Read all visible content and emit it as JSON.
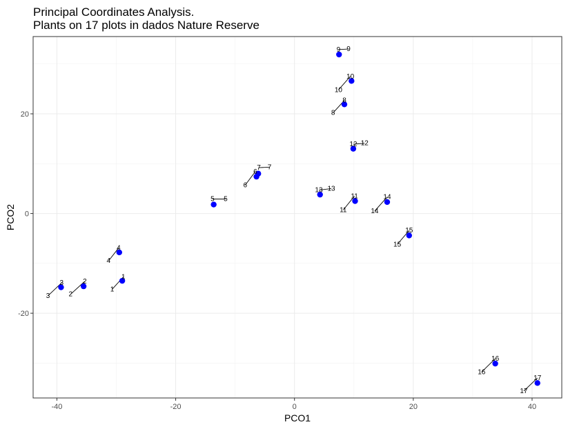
{
  "chart_data": {
    "type": "scatter",
    "title": "Principal Coordinates Analysis.",
    "subtitle": "Plants on 17 plots in dados Nature Reserve",
    "xlabel": "PCO1",
    "ylabel": "PCO2",
    "xlim": [
      -44,
      45
    ],
    "ylim": [
      -37,
      35.5
    ],
    "xticks": [
      -40,
      -20,
      0,
      20,
      40
    ],
    "yticks": [
      -20,
      0,
      20
    ],
    "grid": true,
    "point_color": "#0000ff",
    "points": [
      {
        "label": "1",
        "x": -29.0,
        "y": -13.5
      },
      {
        "label": "2",
        "x": -35.5,
        "y": -14.6
      },
      {
        "label": "3",
        "x": -39.3,
        "y": -14.8
      },
      {
        "label": "4",
        "x": -29.5,
        "y": -7.8
      },
      {
        "label": "5",
        "x": -13.6,
        "y": 1.8
      },
      {
        "label": "6",
        "x": -6.4,
        "y": 7.4
      },
      {
        "label": "7",
        "x": -6.1,
        "y": 8.0
      },
      {
        "label": "8",
        "x": 8.4,
        "y": 21.9
      },
      {
        "label": "9",
        "x": 7.5,
        "y": 31.9
      },
      {
        "label": "10",
        "x": 9.6,
        "y": 26.6
      },
      {
        "label": "11",
        "x": 10.2,
        "y": 2.5
      },
      {
        "label": "12",
        "x": 9.9,
        "y": 13.0
      },
      {
        "label": "13",
        "x": 4.3,
        "y": 3.8
      },
      {
        "label": "14",
        "x": 15.6,
        "y": 2.3
      },
      {
        "label": "15",
        "x": 19.3,
        "y": -4.4
      },
      {
        "label": "16",
        "x": 33.8,
        "y": -30.1
      },
      {
        "label": "17",
        "x": 40.9,
        "y": -34.0
      }
    ],
    "label_pairs": [
      {
        "label": "1",
        "above": [
          -28.8,
          -12.7
        ],
        "below": [
          -30.7,
          -15.2
        ]
      },
      {
        "label": "2",
        "above": [
          -35.3,
          -13.6
        ],
        "below": [
          -37.7,
          -16.2
        ]
      },
      {
        "label": "3",
        "above": [
          -39.2,
          -13.9
        ],
        "below": [
          -41.5,
          -16.5
        ]
      },
      {
        "label": "4",
        "above": [
          -29.6,
          -6.9
        ],
        "below": [
          -31.3,
          -9.5
        ]
      },
      {
        "label": "5",
        "above": [
          -13.8,
          2.9
        ],
        "below": [
          -11.6,
          2.9
        ]
      },
      {
        "label": "6",
        "above": [
          -6.6,
          8.4
        ],
        "below": [
          -8.3,
          5.7
        ]
      },
      {
        "label": "7",
        "above": [
          -6.0,
          9.2
        ],
        "below": [
          -4.2,
          9.3
        ]
      },
      {
        "label": "8",
        "above": [
          8.4,
          22.7
        ],
        "below": [
          6.5,
          20.2
        ]
      },
      {
        "label": "9",
        "above": [
          7.4,
          32.9
        ],
        "below": [
          9.1,
          33.0
        ]
      },
      {
        "label": "10",
        "above": [
          9.4,
          27.5
        ],
        "below": [
          7.4,
          24.8
        ]
      },
      {
        "label": "11",
        "above": [
          10.1,
          3.5
        ],
        "below": [
          8.2,
          0.7
        ]
      },
      {
        "label": "12",
        "above": [
          9.9,
          13.9
        ],
        "below": [
          11.8,
          14.1
        ]
      },
      {
        "label": "13",
        "above": [
          4.1,
          4.7
        ],
        "below": [
          6.2,
          5.0
        ]
      },
      {
        "label": "14",
        "above": [
          15.6,
          3.3
        ],
        "below": [
          13.5,
          0.5
        ]
      },
      {
        "label": "15",
        "above": [
          19.3,
          -3.4
        ],
        "below": [
          17.3,
          -6.2
        ]
      },
      {
        "label": "16",
        "above": [
          33.8,
          -29.1
        ],
        "below": [
          31.5,
          -31.8
        ]
      },
      {
        "label": "17",
        "above": [
          40.9,
          -33.0
        ],
        "below": [
          38.6,
          -35.6
        ]
      }
    ]
  }
}
